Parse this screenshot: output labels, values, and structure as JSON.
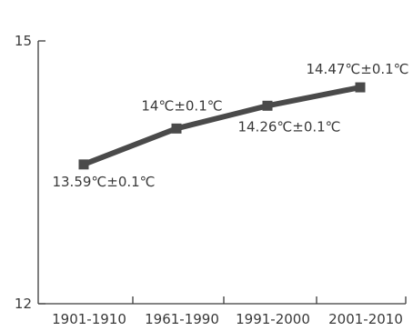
{
  "chart_data": {
    "type": "line",
    "categories": [
      "1901-1910",
      "1961-1990",
      "1991-2000",
      "2001-2010"
    ],
    "series": [
      {
        "values": [
          13.59,
          14.0,
          14.26,
          14.47
        ],
        "labels": [
          "13.59℃±0.1℃",
          "14℃±0.1℃",
          "14.26℃±0.1℃",
          "14.47℃±0.1℃"
        ]
      }
    ],
    "ylim": [
      12,
      15
    ],
    "yticks": [
      "12",
      "15"
    ],
    "title": "",
    "xlabel": "",
    "ylabel": "",
    "grid": false,
    "line_color": "#4a4a4a",
    "axis_color": "#3a3a3a",
    "text_color": "#3a3a3a"
  }
}
